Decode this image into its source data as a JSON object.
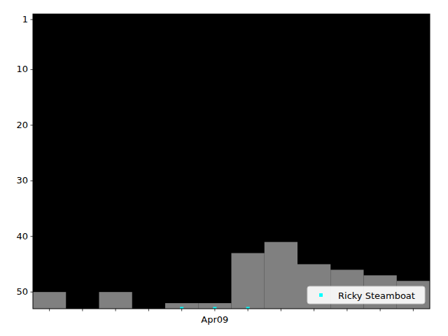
{
  "chart_data": {
    "type": "bar",
    "categories": [
      null,
      null,
      null,
      null,
      null,
      "Apr09",
      null,
      null,
      null,
      null,
      null,
      null
    ],
    "ylim": [
      53,
      0
    ],
    "yticks": [
      1,
      10,
      20,
      30,
      40,
      50
    ],
    "legend": "lower right",
    "grid": false,
    "series": [
      {
        "type": "bar",
        "color": "#808080",
        "values": [
          50,
          null,
          50,
          null,
          52,
          52,
          43,
          41,
          45,
          46,
          47,
          48
        ]
      },
      {
        "name": "Ricky Steamboat",
        "type": "scatter",
        "color": "#00ffff",
        "marker": "square",
        "values": [
          null,
          null,
          null,
          null,
          53,
          53,
          53,
          null,
          null,
          null,
          null,
          null
        ]
      }
    ]
  }
}
